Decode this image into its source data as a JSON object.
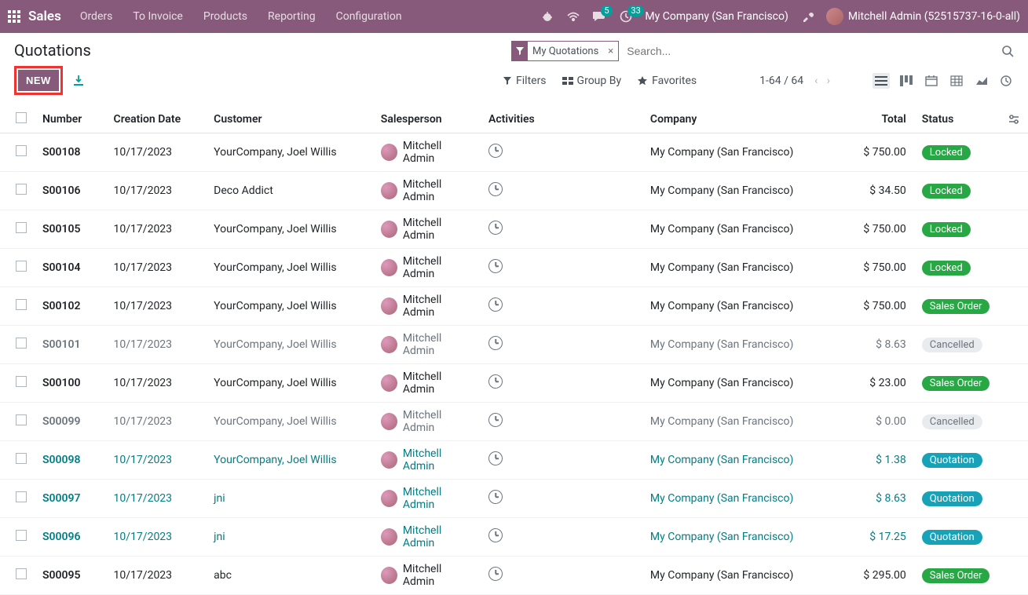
{
  "nav": {
    "brand": "Sales",
    "menu": [
      "Orders",
      "To Invoice",
      "Products",
      "Reporting",
      "Configuration"
    ],
    "chat_badge": "5",
    "timer_badge": "33",
    "company": "My Company (San Francisco)",
    "user": "Mitchell Admin (52515737-16-0-all)"
  },
  "header": {
    "title": "Quotations",
    "filter_chip": "My Quotations",
    "search_placeholder": "Search...",
    "new_button": "NEW",
    "filters": "Filters",
    "groupby": "Group By",
    "favorites": "Favorites",
    "pager": "1-64 / 64"
  },
  "columns": {
    "number": "Number",
    "creation_date": "Creation Date",
    "customer": "Customer",
    "salesperson": "Salesperson",
    "activities": "Activities",
    "company": "Company",
    "total": "Total",
    "status": "Status"
  },
  "rows": [
    {
      "num": "S00108",
      "date": "10/17/2023",
      "cust": "YourCompany, Joel Willis",
      "sp": "Mitchell Admin",
      "comp": "My Company (San Francisco)",
      "total": "$ 750.00",
      "status": "Locked",
      "status_kind": "locked",
      "row_style": ""
    },
    {
      "num": "S00106",
      "date": "10/17/2023",
      "cust": "Deco Addict",
      "sp": "Mitchell Admin",
      "comp": "My Company (San Francisco)",
      "total": "$ 34.50",
      "status": "Locked",
      "status_kind": "locked",
      "row_style": ""
    },
    {
      "num": "S00105",
      "date": "10/17/2023",
      "cust": "YourCompany, Joel Willis",
      "sp": "Mitchell Admin",
      "comp": "My Company (San Francisco)",
      "total": "$ 750.00",
      "status": "Locked",
      "status_kind": "locked",
      "row_style": ""
    },
    {
      "num": "S00104",
      "date": "10/17/2023",
      "cust": "YourCompany, Joel Willis",
      "sp": "Mitchell Admin",
      "comp": "My Company (San Francisco)",
      "total": "$ 750.00",
      "status": "Locked",
      "status_kind": "locked",
      "row_style": ""
    },
    {
      "num": "S00102",
      "date": "10/17/2023",
      "cust": "YourCompany, Joel Willis",
      "sp": "Mitchell Admin",
      "comp": "My Company (San Francisco)",
      "total": "$ 750.00",
      "status": "Sales Order",
      "status_kind": "sales",
      "row_style": ""
    },
    {
      "num": "S00101",
      "date": "10/17/2023",
      "cust": "YourCompany, Joel Willis",
      "sp": "Mitchell Admin",
      "comp": "My Company (San Francisco)",
      "total": "$ 8.63",
      "status": "Cancelled",
      "status_kind": "cancelled",
      "row_style": "muted-row"
    },
    {
      "num": "S00100",
      "date": "10/17/2023",
      "cust": "YourCompany, Joel Willis",
      "sp": "Mitchell Admin",
      "comp": "My Company (San Francisco)",
      "total": "$ 23.00",
      "status": "Sales Order",
      "status_kind": "sales",
      "row_style": ""
    },
    {
      "num": "S00099",
      "date": "10/17/2023",
      "cust": "YourCompany, Joel Willis",
      "sp": "Mitchell Admin",
      "comp": "My Company (San Francisco)",
      "total": "$ 0.00",
      "status": "Cancelled",
      "status_kind": "cancelled",
      "row_style": "muted-row"
    },
    {
      "num": "S00098",
      "date": "10/17/2023",
      "cust": "YourCompany, Joel Willis",
      "sp": "Mitchell Admin",
      "comp": "My Company (San Francisco)",
      "total": "$ 1.38",
      "status": "Quotation",
      "status_kind": "quotation",
      "row_style": "highlight"
    },
    {
      "num": "S00097",
      "date": "10/17/2023",
      "cust": "jni",
      "sp": "Mitchell Admin",
      "comp": "My Company (San Francisco)",
      "total": "$ 8.63",
      "status": "Quotation",
      "status_kind": "quotation",
      "row_style": "highlight"
    },
    {
      "num": "S00096",
      "date": "10/17/2023",
      "cust": "jni",
      "sp": "Mitchell Admin",
      "comp": "My Company (San Francisco)",
      "total": "$ 17.25",
      "status": "Quotation",
      "status_kind": "quotation",
      "row_style": "highlight"
    },
    {
      "num": "S00095",
      "date": "10/17/2023",
      "cust": "abc",
      "sp": "Mitchell Admin",
      "comp": "My Company (San Francisco)",
      "total": "$ 295.00",
      "status": "Sales Order",
      "status_kind": "sales",
      "row_style": ""
    }
  ],
  "colors": {
    "brand_bg": "#875a7b",
    "accent_teal": "#00a09d",
    "link_teal": "#017e84",
    "badge_green": "#28a745",
    "badge_info": "#17a2b8",
    "highlight_red": "#e33"
  }
}
